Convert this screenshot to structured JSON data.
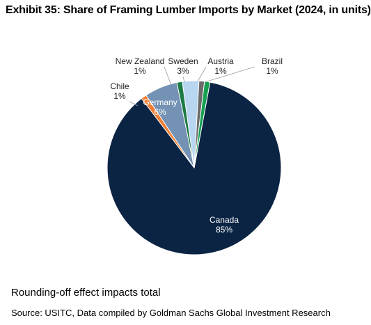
{
  "title": "Exhibit 35: Share of Framing Lumber Imports by Market (2024, in units)",
  "footnote": "Rounding-off effect impacts total",
  "source": "Source: USITC, Data compiled by Goldman Sachs Global Investment Research",
  "chart_data": {
    "type": "pie",
    "title": "Exhibit 35: Share of Framing Lumber Imports by Market (2024, in units)",
    "unit": "%",
    "slices": [
      {
        "label": "Canada",
        "value": 85,
        "value_label": "85%",
        "color": "#0b2444"
      },
      {
        "label": "Chile",
        "value": 1,
        "value_label": "1%",
        "color": "#ef7d31"
      },
      {
        "label": "Germany",
        "value": 6,
        "value_label": "6%",
        "color": "#7392b4"
      },
      {
        "label": "New Zealand",
        "value": 1,
        "value_label": "1%",
        "color": "#1e7b45"
      },
      {
        "label": "Sweden",
        "value": 3,
        "value_label": "3%",
        "color": "#b8d6ef"
      },
      {
        "label": "Austria",
        "value": 1,
        "value_label": "1%",
        "color": "#6b6b6b"
      },
      {
        "label": "Brazil",
        "value": 1,
        "value_label": "1%",
        "color": "#16a052"
      }
    ],
    "legend": "none"
  }
}
